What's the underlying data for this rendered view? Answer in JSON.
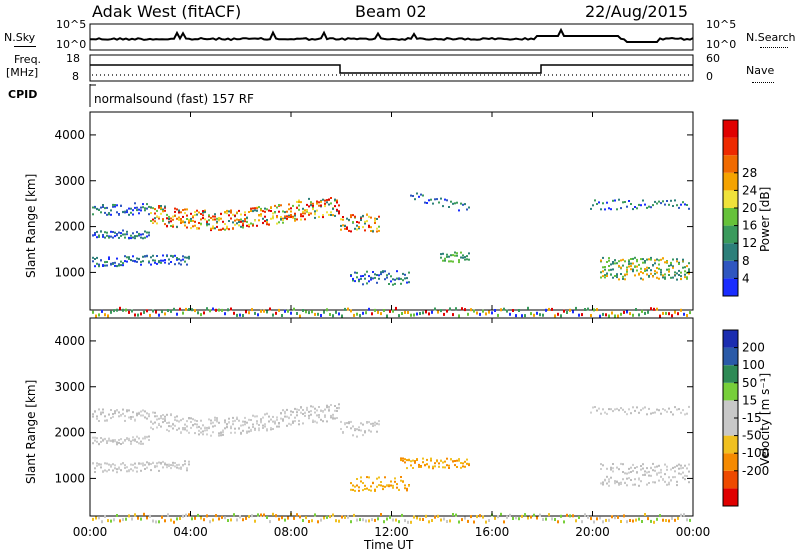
{
  "header": {
    "station": "Adak West (fitACF)",
    "beam": "Beam 02",
    "date": "22/Aug/2015"
  },
  "noise_panel": {
    "left_label": "N.Sky",
    "right_label": "N.Search",
    "tick_top": "10^5",
    "tick_bottom": "10^0"
  },
  "freq_panel": {
    "left_label_1": "Freq.",
    "left_label_2": "[MHz]",
    "tick_top": "18",
    "tick_bottom": "8",
    "right_label": "Nave",
    "right_tick_top": "60",
    "right_tick_bottom": "0"
  },
  "cpid_panel": {
    "label": "CPID",
    "program": "normalsound (fast) 157 RF"
  },
  "chart_data": [
    {
      "type": "heatmap",
      "title": "Power",
      "ylabel": "Slant Range [km]",
      "ylim": [
        180,
        4500
      ],
      "yticks": [
        "1000",
        "2000",
        "3000",
        "4000"
      ],
      "colorbar_label": "Power [dB]",
      "colorbar_ticks": [
        "4",
        "8",
        "12",
        "16",
        "20",
        "24",
        "28"
      ],
      "colorbar_colors": [
        "#1a2dff",
        "#2f56c0",
        "#2c7f7a",
        "#3a9a5c",
        "#66c23a",
        "#f0e23a",
        "#f5a300",
        "#f06a00",
        "#ee2a00",
        "#e00000"
      ]
    },
    {
      "type": "heatmap",
      "title": "Velocity",
      "ylabel": "Slant Range [km]",
      "ylim": [
        180,
        4500
      ],
      "yticks": [
        "1000",
        "2000",
        "3000",
        "4000"
      ],
      "colorbar_label": "Velocity [m s⁻¹]",
      "colorbar_ticks": [
        "200",
        "100",
        "50",
        "15",
        "-15",
        "-50",
        "-100",
        "-200"
      ],
      "colorbar_colors": [
        "#1b2db0",
        "#2a5aa8",
        "#2e8a55",
        "#77cf3a",
        "#c8c8c8",
        "#c8c8c8",
        "#f0c020",
        "#f58a00",
        "#ee4a00",
        "#e00000"
      ]
    }
  ],
  "time_axis": {
    "ticks": [
      "00:00",
      "04:00",
      "08:00",
      "12:00",
      "16:00",
      "20:00",
      "00:00"
    ],
    "xlabel": "Time UT"
  }
}
